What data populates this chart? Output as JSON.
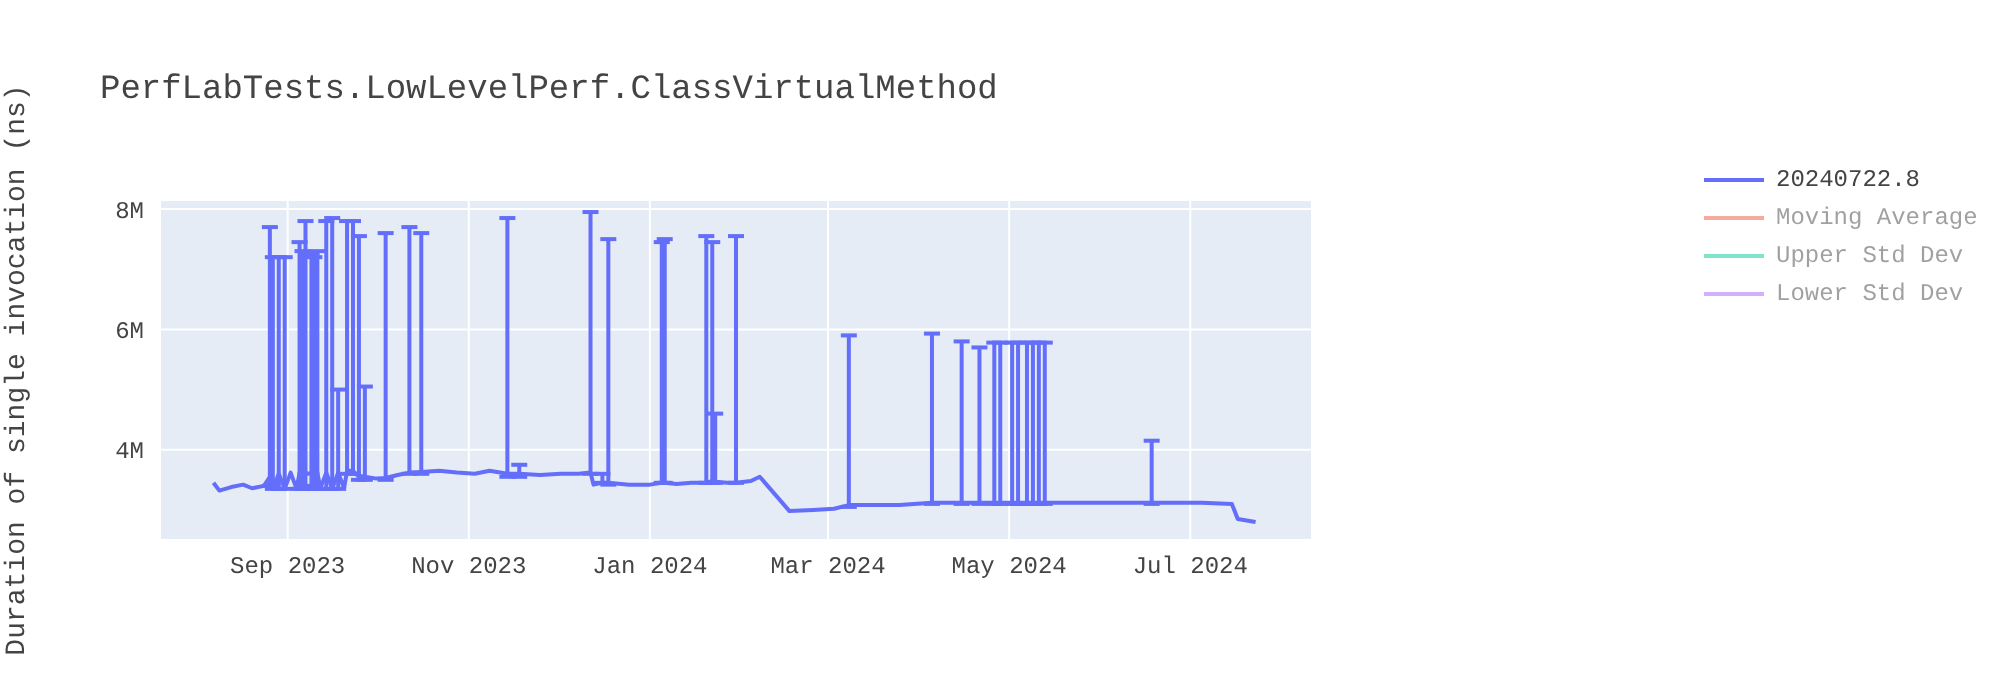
{
  "chart_data": {
    "type": "line",
    "title": "PerfLabTests.LowLevelPerf.ClassVirtualMethod",
    "ylabel": "Duration of single invocation (ns)",
    "x": [
      "2023-08-07",
      "2023-08-09",
      "2023-08-13",
      "2023-08-17",
      "2023-08-20",
      "2023-08-24",
      "2023-08-26",
      "2023-08-27",
      "2023-08-29",
      "2023-08-31",
      "2023-09-02",
      "2023-09-04",
      "2023-09-05",
      "2023-09-06",
      "2023-09-07",
      "2023-09-08",
      "2023-09-09",
      "2023-09-10",
      "2023-09-11",
      "2023-09-12",
      "2023-09-14",
      "2023-09-16",
      "2023-09-18",
      "2023-09-20",
      "2023-09-21",
      "2023-09-23",
      "2023-09-25",
      "2023-09-26",
      "2023-09-27",
      "2023-10-01",
      "2023-10-04",
      "2023-10-08",
      "2023-10-12",
      "2023-10-16",
      "2023-10-22",
      "2023-10-28",
      "2023-11-03",
      "2023-11-08",
      "2023-11-14",
      "2023-11-18",
      "2023-11-25",
      "2023-12-02",
      "2023-12-08",
      "2023-12-12",
      "2023-12-13",
      "2023-12-16",
      "2023-12-18",
      "2023-12-25",
      "2024-01-01",
      "2024-01-05",
      "2024-01-06",
      "2024-01-10",
      "2024-01-15",
      "2024-01-20",
      "2024-01-22",
      "2024-01-23",
      "2024-01-27",
      "2024-01-30",
      "2024-02-04",
      "2024-02-07",
      "2024-02-17",
      "2024-02-25",
      "2024-03-03",
      "2024-03-08",
      "2024-03-15",
      "2024-03-25",
      "2024-04-05",
      "2024-04-10",
      "2024-04-15",
      "2024-04-21",
      "2024-04-26",
      "2024-04-28",
      "2024-05-02",
      "2024-05-04",
      "2024-05-07",
      "2024-05-09",
      "2024-05-11",
      "2024-05-13",
      "2024-05-20",
      "2024-06-01",
      "2024-06-10",
      "2024-06-18",
      "2024-06-25",
      "2024-07-05",
      "2024-07-15",
      "2024-07-17",
      "2024-07-23"
    ],
    "series": [
      {
        "name": "20240722.8",
        "color": "#636efa",
        "values": [
          3450000,
          3320000,
          3380000,
          3420000,
          3360000,
          3400000,
          3550000,
          3350000,
          3600000,
          3350000,
          3620000,
          3350000,
          3620000,
          3360000,
          3620000,
          3600000,
          3620000,
          3350000,
          3620000,
          3360000,
          3620000,
          3350000,
          3620000,
          3360000,
          3650000,
          3650000,
          3550000,
          3560000,
          3550000,
          3520000,
          3530000,
          3580000,
          3620000,
          3630000,
          3650000,
          3620000,
          3600000,
          3650000,
          3600000,
          3600000,
          3580000,
          3600000,
          3600000,
          3620000,
          3420000,
          3450000,
          3450000,
          3420000,
          3420000,
          3450000,
          3450000,
          3430000,
          3450000,
          3450000,
          3480000,
          3470000,
          3450000,
          3450000,
          3480000,
          3550000,
          2980000,
          3000000,
          3020000,
          3080000,
          3080000,
          3080000,
          3120000,
          3120000,
          3120000,
          3120000,
          3120000,
          3120000,
          3120000,
          3120000,
          3120000,
          3120000,
          3120000,
          3120000,
          3120000,
          3120000,
          3120000,
          3120000,
          3120000,
          3120000,
          3100000,
          2850000,
          2800000
        ],
        "errors": [
          null,
          null,
          null,
          null,
          null,
          null,
          [
            3400000,
            7700000
          ],
          [
            3350000,
            7200000
          ],
          [
            3350000,
            7200000
          ],
          [
            3350000,
            7200000
          ],
          null,
          null,
          [
            3350000,
            7450000
          ],
          [
            3350000,
            7300000
          ],
          [
            3400000,
            7800000
          ],
          null,
          [
            3350000,
            7250000
          ],
          [
            3350000,
            7200000
          ],
          [
            3350000,
            7300000
          ],
          null,
          [
            3350000,
            7800000
          ],
          [
            3350000,
            7850000
          ],
          [
            3350000,
            5000000
          ],
          null,
          [
            3600000,
            7800000
          ],
          [
            3600000,
            7800000
          ],
          [
            3500000,
            7550000
          ],
          null,
          [
            3500000,
            5050000
          ],
          null,
          [
            3500000,
            7600000
          ],
          null,
          [
            3600000,
            7700000
          ],
          [
            3600000,
            7600000
          ],
          null,
          null,
          null,
          null,
          [
            3550000,
            7850000
          ],
          [
            3550000,
            3750000
          ],
          null,
          null,
          null,
          [
            3600000,
            7950000
          ],
          null,
          [
            3450000,
            3600000
          ],
          [
            3420000,
            7500000
          ],
          null,
          null,
          [
            3450000,
            7450000
          ],
          [
            3450000,
            7500000
          ],
          null,
          null,
          [
            3450000,
            7550000
          ],
          [
            3450000,
            7450000
          ],
          [
            3450000,
            4600000
          ],
          null,
          [
            3450000,
            7550000
          ],
          null,
          null,
          null,
          null,
          null,
          [
            3050000,
            5900000
          ],
          null,
          null,
          [
            3100000,
            5930000
          ],
          null,
          [
            3100000,
            5800000
          ],
          [
            3100000,
            5700000
          ],
          [
            3100000,
            5780000
          ],
          [
            3100000,
            5780000
          ],
          [
            3100000,
            5780000
          ],
          [
            3100000,
            5780000
          ],
          [
            3100000,
            5780000
          ],
          [
            3100000,
            5780000
          ],
          [
            3100000,
            5780000
          ],
          [
            3100000,
            5780000
          ],
          null,
          null,
          null,
          [
            3100000,
            4150000
          ],
          null,
          null,
          null,
          null,
          null
        ]
      },
      {
        "name": "Moving Average",
        "color": "#ef553b",
        "values": [
          null,
          null,
          null,
          null,
          null,
          null,
          null,
          null,
          null,
          null,
          null,
          null,
          null,
          null,
          null,
          null,
          null,
          null,
          null,
          null,
          null,
          null,
          null,
          null,
          null,
          null,
          null,
          null,
          null,
          null,
          null,
          null,
          null,
          null,
          null,
          null,
          null,
          null,
          null,
          null,
          null,
          null,
          null,
          null,
          null,
          null,
          null,
          null,
          null,
          null,
          null,
          null,
          null,
          null,
          null,
          null,
          null,
          null,
          null,
          null,
          null,
          null,
          null,
          null,
          null,
          null,
          null,
          null,
          null,
          null,
          null,
          null,
          null,
          null,
          null,
          null,
          null,
          null,
          null,
          null,
          null,
          null,
          null,
          null,
          null,
          null,
          null
        ]
      },
      {
        "name": "Upper Std Dev",
        "color": "#00cc96",
        "values": [
          null,
          null,
          null,
          null,
          null,
          null,
          null,
          null,
          null,
          null,
          null,
          null,
          null,
          null,
          null,
          null,
          null,
          null,
          null,
          null,
          null,
          null,
          null,
          null,
          null,
          null,
          null,
          null,
          null,
          null,
          null,
          null,
          null,
          null,
          null,
          null,
          null,
          null,
          null,
          null,
          null,
          null,
          null,
          null,
          null,
          null,
          null,
          null,
          null,
          null,
          null,
          null,
          null,
          null,
          null,
          null,
          null,
          null,
          null,
          null,
          null,
          null,
          null,
          null,
          null,
          null,
          null,
          null,
          null,
          null,
          null,
          null,
          null,
          null,
          null,
          null,
          null,
          null,
          null,
          null,
          null,
          null,
          null,
          null,
          null,
          null,
          null
        ]
      },
      {
        "name": "Lower Std Dev",
        "color": "#ab63fa",
        "values": [
          null,
          null,
          null,
          null,
          null,
          null,
          null,
          null,
          null,
          null,
          null,
          null,
          null,
          null,
          null,
          null,
          null,
          null,
          null,
          null,
          null,
          null,
          null,
          null,
          null,
          null,
          null,
          null,
          null,
          null,
          null,
          null,
          null,
          null,
          null,
          null,
          null,
          null,
          null,
          null,
          null,
          null,
          null,
          null,
          null,
          null,
          null,
          null,
          null,
          null,
          null,
          null,
          null,
          null,
          null,
          null,
          null,
          null,
          null,
          null,
          null,
          null,
          null,
          null,
          null,
          null,
          null,
          null,
          null,
          null,
          null,
          null,
          null,
          null,
          null,
          null,
          null,
          null,
          null,
          null,
          null,
          null,
          null,
          null,
          null,
          null,
          null
        ]
      }
    ],
    "xlim": [
      "2023-07-20",
      "2024-08-11"
    ],
    "xticks": [
      {
        "value": "2023-09-01",
        "label": "Sep 2023"
      },
      {
        "value": "2023-11-01",
        "label": "Nov 2023"
      },
      {
        "value": "2024-01-01",
        "label": "Jan 2024"
      },
      {
        "value": "2024-03-01",
        "label": "Mar 2024"
      },
      {
        "value": "2024-05-01",
        "label": "May 2024"
      },
      {
        "value": "2024-07-01",
        "label": "Jul 2024"
      }
    ],
    "ylim": [
      2500000,
      8150000
    ],
    "yticks": [
      {
        "value": 4000000,
        "label": "4M"
      },
      {
        "value": 6000000,
        "label": "6M"
      },
      {
        "value": 8000000,
        "label": "8M"
      }
    ],
    "grid": true,
    "legend": "top right",
    "marker": "none",
    "line_style": "solid"
  }
}
